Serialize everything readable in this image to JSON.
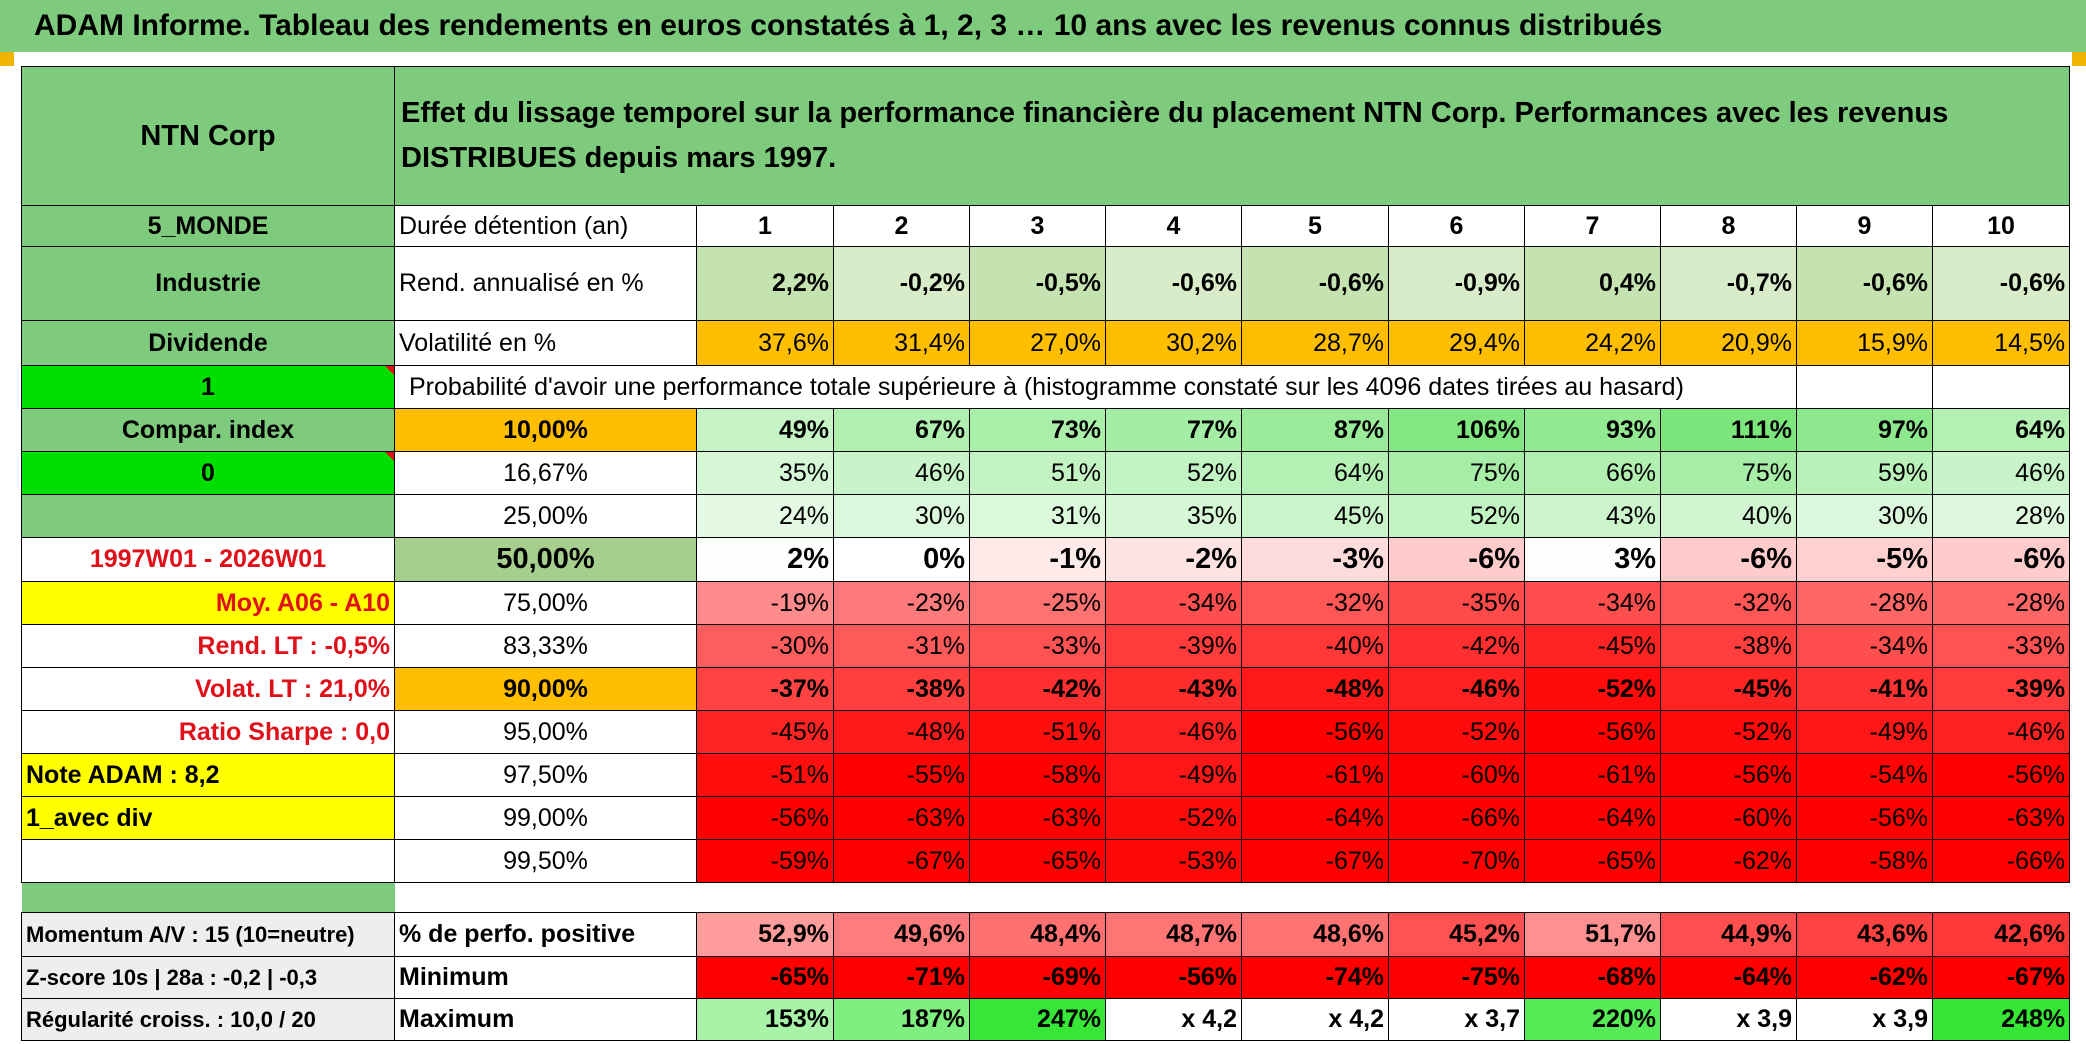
{
  "title": "ADAM Informe. Tableau des rendements en euros constatés à 1, 2, 3 … 10 ans avec les revenus connus distribués",
  "left": {
    "company": "NTN Corp",
    "region": "5_MONDE",
    "sector": "Industrie",
    "dividend_label": "Dividende",
    "dividend_value": "1",
    "compar_label": "Compar. index",
    "compar_value": "0",
    "period": "1997W01 - 2026W01",
    "moy": "Moy. A06 - A10",
    "rend_lt": "Rend. LT :    -0,5%",
    "volat_lt": "Volat. LT :   21,0%",
    "sharpe": "Ratio Sharpe :    0,0",
    "note": "Note ADAM : 8,2",
    "avec_div": "1_avec div",
    "momentum": "Momentum A/V : 15 (10=neutre)",
    "zscore": "Z-score 10s | 28a : -0,2 | -0,3",
    "regularite": "Régularité croiss. : 10,0 / 20"
  },
  "header_text": "Effet du lissage temporel sur la performance financière du placement NTN Corp. Performances avec les revenus DISTRIBUES depuis mars 1997.",
  "duration_label": "Durée détention (an)",
  "years": [
    "1",
    "2",
    "3",
    "4",
    "5",
    "6",
    "7",
    "8",
    "9",
    "10"
  ],
  "rend_label": "Rend. annualisé en %",
  "rend": [
    "2,2%",
    "-0,2%",
    "-0,5%",
    "-0,6%",
    "-0,6%",
    "-0,9%",
    "0,4%",
    "-0,7%",
    "-0,6%",
    "-0,6%"
  ],
  "vol_label": "Volatilité en %",
  "vol": [
    "37,6%",
    "31,4%",
    "27,0%",
    "30,2%",
    "28,7%",
    "29,4%",
    "24,2%",
    "20,9%",
    "15,9%",
    "14,5%"
  ],
  "prob_label": "Probabilité d'avoir une performance totale supérieure à (histogramme constaté sur les 4096 dates tirées au hasard)",
  "percentiles": [
    {
      "p": "10,00%",
      "v": [
        "49%",
        "67%",
        "73%",
        "77%",
        "87%",
        "106%",
        "93%",
        "111%",
        "97%",
        "64%"
      ]
    },
    {
      "p": "16,67%",
      "v": [
        "35%",
        "46%",
        "51%",
        "52%",
        "64%",
        "75%",
        "66%",
        "75%",
        "59%",
        "46%"
      ]
    },
    {
      "p": "25,00%",
      "v": [
        "24%",
        "30%",
        "31%",
        "35%",
        "45%",
        "52%",
        "43%",
        "40%",
        "30%",
        "28%"
      ]
    },
    {
      "p": "50,00%",
      "v": [
        "2%",
        "0%",
        "-1%",
        "-2%",
        "-3%",
        "-6%",
        "3%",
        "-6%",
        "-5%",
        "-6%"
      ]
    },
    {
      "p": "75,00%",
      "v": [
        "-19%",
        "-23%",
        "-25%",
        "-34%",
        "-32%",
        "-35%",
        "-34%",
        "-32%",
        "-28%",
        "-28%"
      ]
    },
    {
      "p": "83,33%",
      "v": [
        "-30%",
        "-31%",
        "-33%",
        "-39%",
        "-40%",
        "-42%",
        "-45%",
        "-38%",
        "-34%",
        "-33%"
      ]
    },
    {
      "p": "90,00%",
      "v": [
        "-37%",
        "-38%",
        "-42%",
        "-43%",
        "-48%",
        "-46%",
        "-52%",
        "-45%",
        "-41%",
        "-39%"
      ]
    },
    {
      "p": "95,00%",
      "v": [
        "-45%",
        "-48%",
        "-51%",
        "-46%",
        "-56%",
        "-52%",
        "-56%",
        "-52%",
        "-49%",
        "-46%"
      ]
    },
    {
      "p": "97,50%",
      "v": [
        "-51%",
        "-55%",
        "-58%",
        "-49%",
        "-61%",
        "-60%",
        "-61%",
        "-56%",
        "-54%",
        "-56%"
      ]
    },
    {
      "p": "99,00%",
      "v": [
        "-56%",
        "-63%",
        "-63%",
        "-52%",
        "-64%",
        "-66%",
        "-64%",
        "-60%",
        "-56%",
        "-63%"
      ]
    },
    {
      "p": "99,50%",
      "v": [
        "-59%",
        "-67%",
        "-65%",
        "-53%",
        "-67%",
        "-70%",
        "-65%",
        "-62%",
        "-58%",
        "-66%"
      ]
    }
  ],
  "pos_label": "% de perfo. positive",
  "pos": [
    "52,9%",
    "49,6%",
    "48,4%",
    "48,7%",
    "48,6%",
    "45,2%",
    "51,7%",
    "44,9%",
    "43,6%",
    "42,6%"
  ],
  "min_label": "Minimum",
  "min": [
    "-65%",
    "-71%",
    "-69%",
    "-56%",
    "-74%",
    "-75%",
    "-68%",
    "-64%",
    "-62%",
    "-67%"
  ],
  "max_label": "Maximum",
  "max": [
    "153%",
    "187%",
    "247%",
    "x 4,2",
    "x 4,2",
    "x 3,7",
    "220%",
    "x 3,9",
    "x 3,9",
    "248%"
  ],
  "colors": {
    "header_green": "#7ecb7e",
    "bright_green": "#00e000",
    "rend_green": "#c5e3b1",
    "orange": "#ffbf00",
    "yellow": "#ffff00",
    "label_red": "#e0101a"
  }
}
